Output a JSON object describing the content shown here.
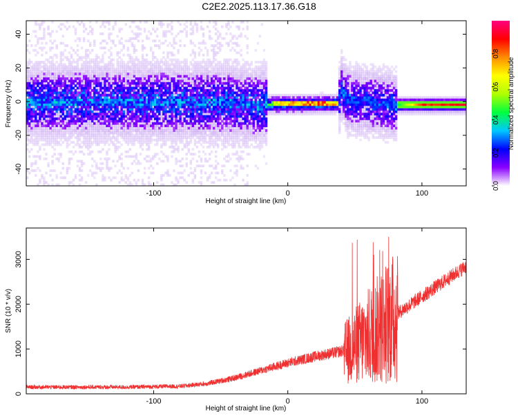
{
  "title": "C2E2.2025.113.17.36.G18",
  "chart_data": [
    {
      "type": "heatmap",
      "xlabel": "Height of straight line (km)",
      "ylabel": "Frequency (Hz)",
      "xlim": [
        -195,
        133
      ],
      "ylim": [
        -50,
        48
      ],
      "xticks": [
        -100,
        0,
        100
      ],
      "yticks": [
        -40,
        -20,
        0,
        20,
        40
      ],
      "colorbar": {
        "label": "Normalized spectral amplitude",
        "range": [
          0.0,
          1.0
        ],
        "ticks": [
          0.0,
          0.2,
          0.4,
          0.6,
          0.8
        ],
        "tick_labels": [
          "0.0",
          "0.2",
          "0.4",
          "0.6",
          "0.8"
        ],
        "colormap": [
          "#ffffff",
          "#8a00ff",
          "#0000ff",
          "#00c8ff",
          "#00ff40",
          "#b0ff00",
          "#ffff00",
          "#ff8c00",
          "#ff0000",
          "#ff0080"
        ]
      },
      "ridge": [
        {
          "x": -195,
          "f": 0.0,
          "amp": 0.22
        },
        {
          "x": -150,
          "f": 0.0,
          "amp": 0.24
        },
        {
          "x": -100,
          "f": 0.0,
          "amp": 0.25
        },
        {
          "x": -50,
          "f": -0.5,
          "amp": 0.3
        },
        {
          "x": -20,
          "f": -2.5,
          "amp": 0.45
        },
        {
          "x": -12,
          "f": -1.5,
          "amp": 0.6
        },
        {
          "x": 0,
          "f": -1.5,
          "amp": 0.85
        },
        {
          "x": 20,
          "f": -1.5,
          "amp": 0.9
        },
        {
          "x": 38,
          "f": -1.0,
          "amp": 0.85
        },
        {
          "x": 40,
          "f": 8.0,
          "amp": 0.5
        },
        {
          "x": 45,
          "f": 1.0,
          "amp": 0.35
        },
        {
          "x": 60,
          "f": 0.0,
          "amp": 0.3
        },
        {
          "x": 80,
          "f": -2.0,
          "amp": 0.4
        },
        {
          "x": 100,
          "f": -2.0,
          "amp": 0.9
        },
        {
          "x": 133,
          "f": -2.0,
          "amp": 0.95
        }
      ]
    },
    {
      "type": "line",
      "xlabel": "Height of straight line (km)",
      "ylabel": "SNR (10 * v/v)",
      "xlim": [
        -195,
        133
      ],
      "ylim": [
        0,
        3700
      ],
      "xticks": [
        -100,
        0,
        100
      ],
      "yticks": [
        0,
        1000,
        2000,
        3000
      ],
      "color": "#f03030",
      "series": [
        {
          "x": [
            -195,
            -160,
            -120,
            -80,
            -60,
            -40,
            -20,
            0,
            20,
            40,
            42
          ],
          "y": [
            150,
            150,
            150,
            170,
            230,
            350,
            520,
            690,
            830,
            950,
            1000
          ]
        }
      ],
      "noisy_band": {
        "x": [
          42,
          82
        ],
        "low": 200,
        "high": 3600
      },
      "tail": {
        "x": [
          82,
          133
        ],
        "y": [
          1800,
          2850
        ]
      }
    }
  ]
}
